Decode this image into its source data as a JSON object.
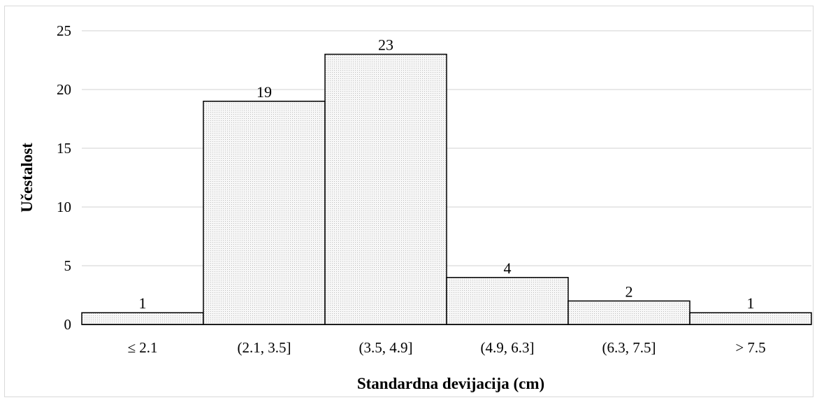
{
  "chart_data": {
    "type": "bar",
    "title": "",
    "xlabel": "Standardna devijacija (cm)",
    "ylabel": "Učestalost",
    "categories": [
      "≤ 2.1",
      "(2.1, 3.5]",
      "(3.5, 4.9]",
      "(4.9, 6.3]",
      "(6.3, 7.5]",
      "> 7.5"
    ],
    "values": [
      1,
      19,
      23,
      4,
      2,
      1
    ],
    "data_labels": [
      "1",
      "19",
      "23",
      "4",
      "2",
      "1"
    ],
    "ylim": [
      0,
      25
    ],
    "yticks": [
      0,
      5,
      10,
      15,
      20,
      25
    ],
    "grid": true,
    "legend": "none",
    "bar_fill": "#ebebeb",
    "bar_stroke": "#000000",
    "grid_color": "#d9d9d9"
  }
}
